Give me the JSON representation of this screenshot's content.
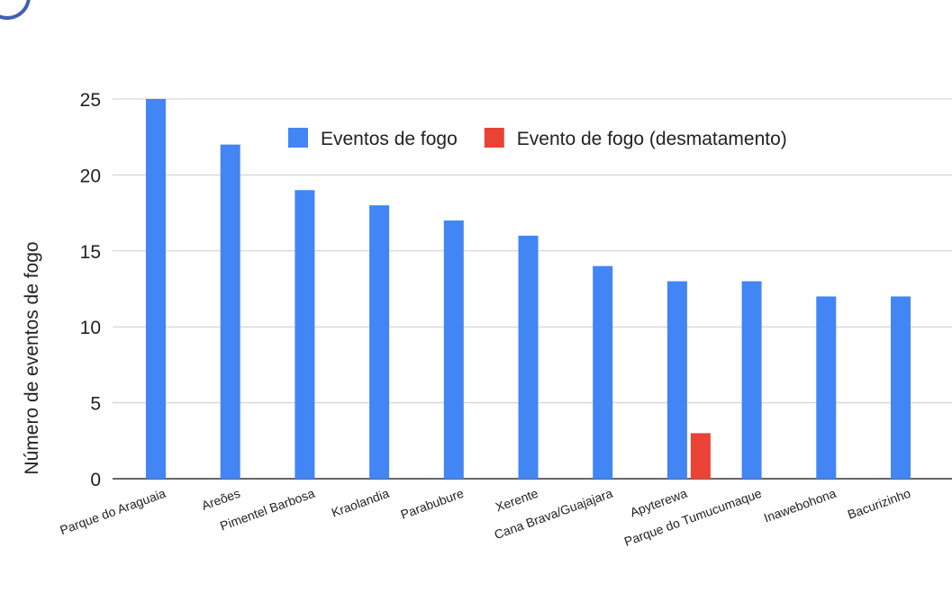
{
  "chart_data": {
    "type": "bar",
    "categories": [
      "Parque do Araguaia",
      "Areões",
      "Pimentel Barbosa",
      "Kraolandia",
      "Parabubure",
      "Xerente",
      "Cana Brava/Guajajara",
      "Apyterewa",
      "Parque do Tumucumaque",
      "Inawebohona",
      "Bacurizinho"
    ],
    "series": [
      {
        "name": "Eventos de fogo",
        "values": [
          25,
          22,
          19,
          18,
          17,
          16,
          14,
          13,
          13,
          12,
          12
        ],
        "color": "#4285f4"
      },
      {
        "name": "Evento de fogo (desmatamento)",
        "values": [
          null,
          null,
          null,
          null,
          null,
          null,
          null,
          3,
          null,
          null,
          null
        ],
        "color": "#ea4335"
      }
    ],
    "ylabel": "Número de eventos de fogo",
    "xlabel": "",
    "ylim": [
      0,
      25
    ],
    "yticks": [
      0,
      5,
      10,
      15,
      20,
      25
    ],
    "grid": true,
    "legend": "top"
  }
}
